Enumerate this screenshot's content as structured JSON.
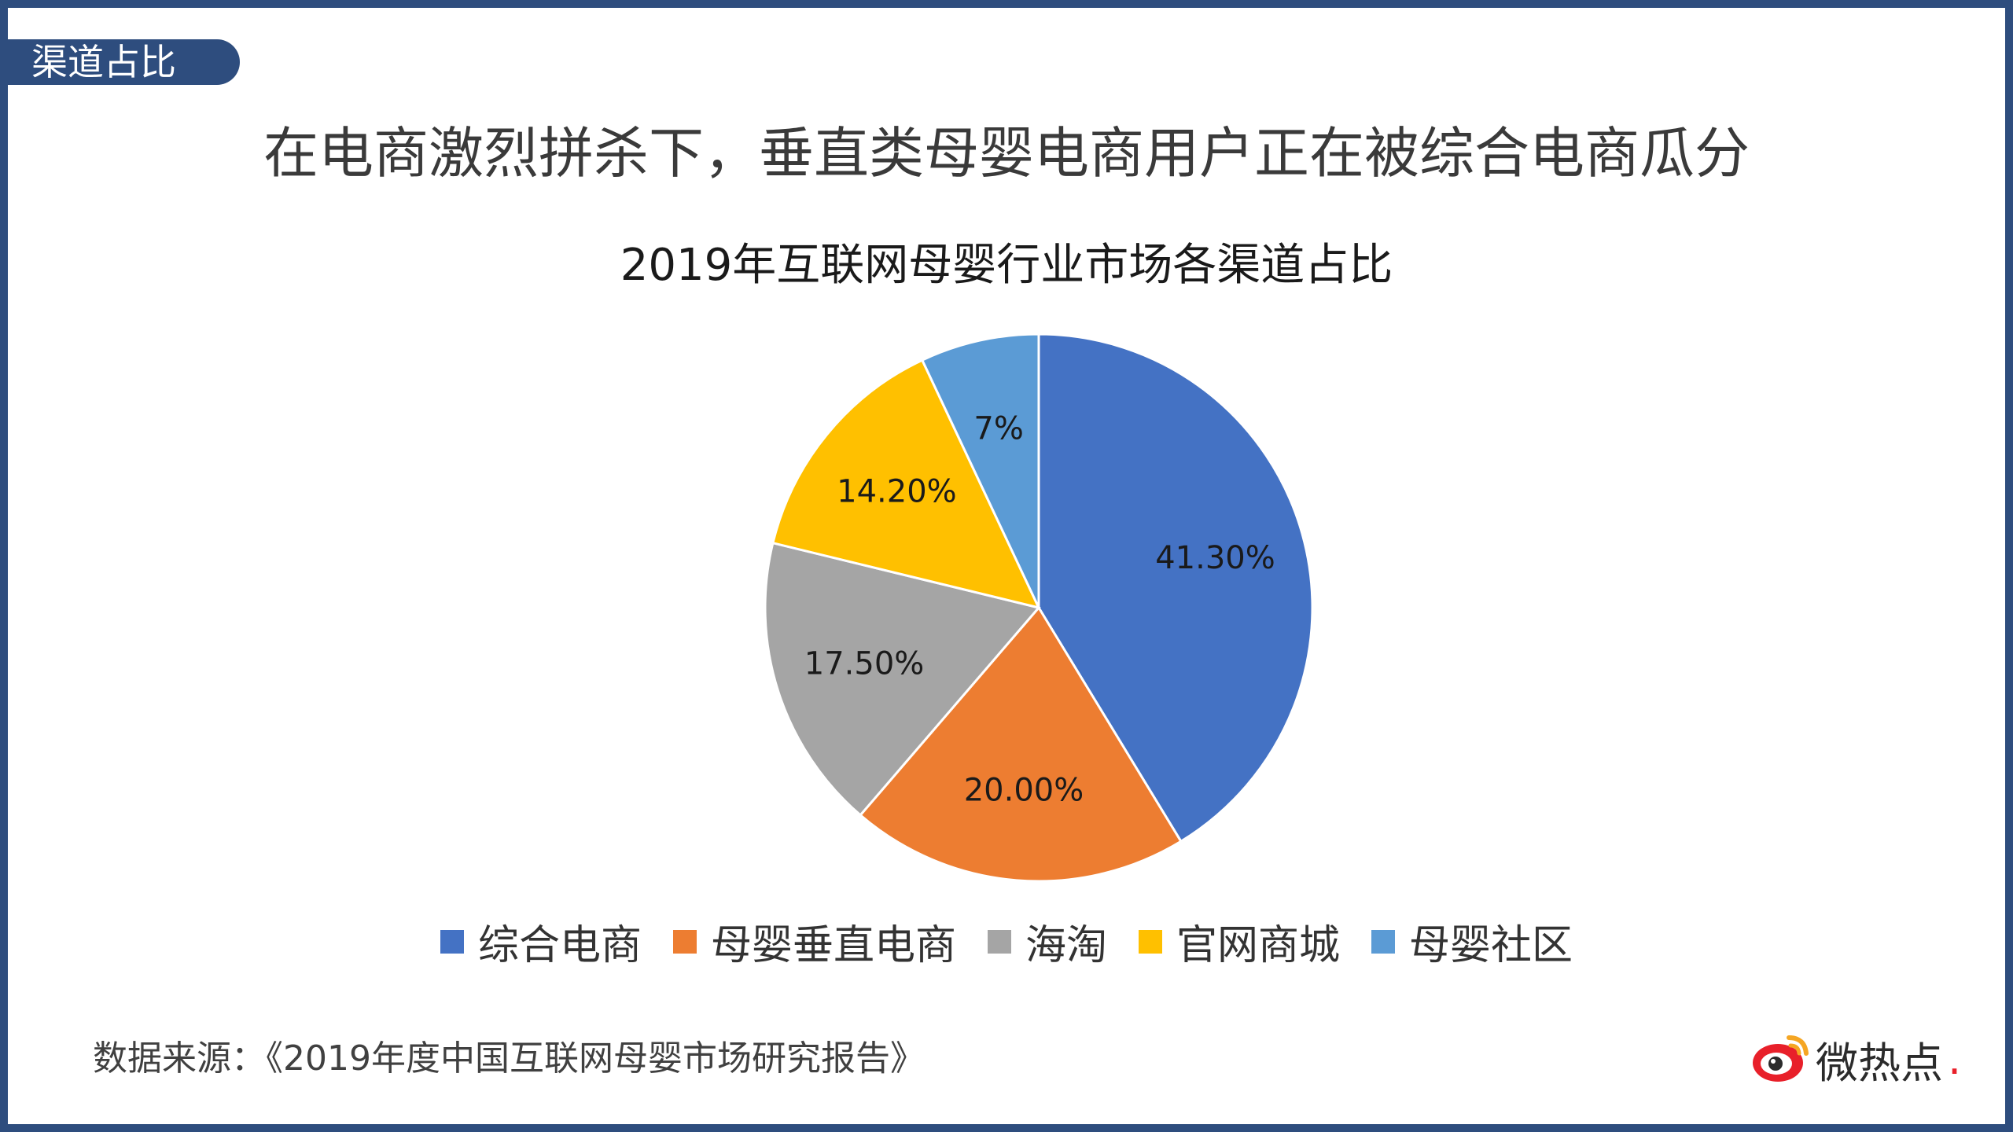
{
  "section_tag": "渠道占比",
  "headline": "在电商激烈拼杀下，垂直类母婴电商用户正在被综合电商瓜分",
  "source": "数据来源：《2019年度中国互联网母婴市场研究报告》",
  "brand": {
    "name": "微热点",
    "dot": ".",
    "icon": "weibo-eye-icon"
  },
  "colors": {
    "frame": "#2e4d7e",
    "brand_red": "#e8202a"
  },
  "chart_data": {
    "type": "pie",
    "title": "2019年互联网母婴行业市场各渠道占比",
    "categories": [
      "综合电商",
      "母婴垂直电商",
      "海淘",
      "官网商城",
      "母婴社区"
    ],
    "values": [
      41.3,
      20.0,
      17.5,
      14.2,
      7
    ],
    "labels": [
      "41.30%",
      "20.00%",
      "17.50%",
      "14.20%",
      "7%"
    ],
    "colors": [
      "#4472c4",
      "#ed7d31",
      "#a5a5a5",
      "#ffc000",
      "#5b9bd5"
    ],
    "start_angle": "12 o'clock",
    "direction": "clockwise",
    "legend_position": "bottom"
  }
}
